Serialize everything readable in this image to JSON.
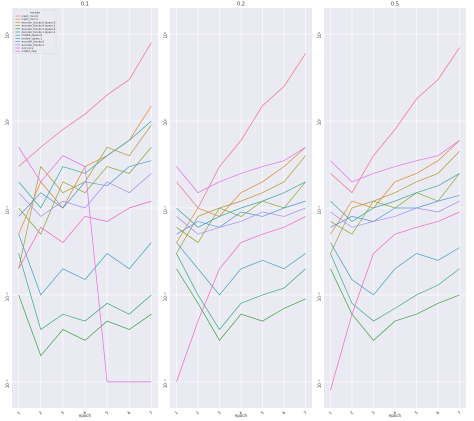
{
  "chart_data": [
    {
      "type": "line",
      "title": "0.1",
      "xlabel": "epoch",
      "log_y": true,
      "grid": true,
      "legend": "upper left",
      "legend_title": "module",
      "x": [
        1,
        2,
        3,
        4,
        5,
        6,
        7
      ],
      "xlim": [
        0.7,
        7.3
      ],
      "xticks": [
        1,
        2,
        3,
        4,
        5,
        6,
        7
      ],
      "ylim": [
        0.0005,
        20
      ],
      "yticks": [
        {
          "value": 0.001,
          "label": "10⁻³"
        },
        {
          "value": 0.01,
          "label": "10⁻²"
        },
        {
          "value": 0.1,
          "label": "10⁻¹"
        },
        {
          "value": 1,
          "label": "10⁰"
        },
        {
          "value": 10,
          "label": "10¹"
        }
      ],
      "series": [
        {
          "name": "input_conv.0",
          "color": "#f77189",
          "values": [
            0.3,
            0.5,
            0.8,
            1.2,
            2,
            3,
            8
          ]
        },
        {
          "name": "input_conv.1",
          "color": "#e18a31",
          "values": [
            0.05,
            0.2,
            0.1,
            0.3,
            0.4,
            0.6,
            1.5
          ]
        },
        {
          "name": "decoder_blocks.0.layers.0",
          "color": "#b59a32",
          "values": [
            0.02,
            0.3,
            0.15,
            0.2,
            0.5,
            0.4,
            0.9
          ]
        },
        {
          "name": "decoder_blocks.0.layers.1",
          "color": "#8ea832",
          "values": [
            0.1,
            0.05,
            0.2,
            0.15,
            0.3,
            0.25,
            0.5
          ]
        },
        {
          "name": "decoder_blocks.1.layers.0",
          "color": "#3ba342",
          "values": [
            0.01,
            0.002,
            0.004,
            0.003,
            0.005,
            0.004,
            0.006
          ]
        },
        {
          "name": "decoder_blocks.1.layers.1",
          "color": "#36ab87",
          "values": [
            0.03,
            0.004,
            0.006,
            0.005,
            0.008,
            0.006,
            0.01
          ]
        },
        {
          "name": "middle_layers.0",
          "color": "#38a9a5",
          "values": [
            0.2,
            0.1,
            0.3,
            0.25,
            0.4,
            0.6,
            1
          ]
        },
        {
          "name": "middle_layers.1",
          "color": "#3ba3c2",
          "values": [
            0.05,
            0.01,
            0.02,
            0.015,
            0.03,
            0.02,
            0.04
          ]
        },
        {
          "name": "encoder_blocks.0",
          "color": "#4b9ae8",
          "values": [
            0.08,
            0.15,
            0.1,
            0.2,
            0.18,
            0.3,
            0.35
          ]
        },
        {
          "name": "encoder_blocks.1",
          "color": "#a48cf4",
          "values": [
            0.15,
            0.08,
            0.12,
            0.1,
            0.2,
            0.15,
            0.25
          ]
        },
        {
          "name": "out_conv",
          "color": "#e46ee9",
          "values": [
            0.5,
            0.2,
            0.4,
            0.3,
            0.001,
            0.001,
            0.001
          ]
        },
        {
          "name": "output_skip",
          "color": "#f565c3",
          "values": [
            0.02,
            0.06,
            0.04,
            0.08,
            0.07,
            0.1,
            0.12
          ]
        }
      ]
    },
    {
      "type": "line",
      "title": "0.2",
      "xlabel": "epoch",
      "log_y": true,
      "grid": true,
      "x": [
        1,
        2,
        3,
        4,
        5,
        6,
        7
      ],
      "xlim": [
        0.7,
        7.3
      ],
      "xticks": [
        1,
        2,
        3,
        4,
        5,
        6,
        7
      ],
      "ylim": [
        0.0005,
        20
      ],
      "yticks": [
        {
          "value": 0.001,
          "label": "10⁻³"
        },
        {
          "value": 0.01,
          "label": "10⁻²"
        },
        {
          "value": 0.1,
          "label": "10⁻¹"
        },
        {
          "value": 1,
          "label": "10⁰"
        },
        {
          "value": 10,
          "label": "10¹"
        }
      ],
      "series": [
        {
          "color": "#f77189",
          "values": [
            0.2,
            0.1,
            0.3,
            0.6,
            1.5,
            2.5,
            6
          ]
        },
        {
          "color": "#e18a31",
          "values": [
            0.04,
            0.1,
            0.08,
            0.15,
            0.2,
            0.3,
            0.5
          ]
        },
        {
          "color": "#b59a32",
          "values": [
            0.03,
            0.08,
            0.1,
            0.12,
            0.15,
            0.2,
            0.4
          ]
        },
        {
          "color": "#8ea832",
          "values": [
            0.06,
            0.04,
            0.1,
            0.08,
            0.12,
            0.1,
            0.2
          ]
        },
        {
          "color": "#3ba342",
          "values": [
            0.02,
            0.008,
            0.003,
            0.006,
            0.005,
            0.007,
            0.009
          ]
        },
        {
          "color": "#36ab87",
          "values": [
            0.03,
            0.01,
            0.004,
            0.008,
            0.01,
            0.012,
            0.02
          ]
        },
        {
          "color": "#38a9a5",
          "values": [
            0.1,
            0.06,
            0.08,
            0.1,
            0.12,
            0.15,
            0.2
          ]
        },
        {
          "color": "#3ba3c2",
          "values": [
            0.04,
            0.02,
            0.01,
            0.02,
            0.025,
            0.02,
            0.03
          ]
        },
        {
          "color": "#4b9ae8",
          "values": [
            0.05,
            0.07,
            0.06,
            0.09,
            0.08,
            0.1,
            0.12
          ]
        },
        {
          "color": "#a48cf4",
          "values": [
            0.08,
            0.05,
            0.06,
            0.07,
            0.09,
            0.08,
            0.1
          ]
        },
        {
          "color": "#e46ee9",
          "values": [
            0.3,
            0.15,
            0.2,
            0.25,
            0.3,
            0.35,
            0.5
          ]
        },
        {
          "color": "#f565c3",
          "values": [
            0.001,
            0.005,
            0.02,
            0.04,
            0.05,
            0.06,
            0.08
          ]
        }
      ]
    },
    {
      "type": "line",
      "title": "0.5",
      "xlabel": "epoch",
      "log_y": true,
      "grid": true,
      "x": [
        1,
        2,
        3,
        4,
        5,
        6,
        7
      ],
      "xlim": [
        0.7,
        7.3
      ],
      "xticks": [
        1,
        2,
        3,
        4,
        5,
        6,
        7
      ],
      "ylim": [
        0.0005,
        20
      ],
      "yticks": [
        {
          "value": 0.001,
          "label": "10⁻³"
        },
        {
          "value": 0.01,
          "label": "10⁻²"
        },
        {
          "value": 0.1,
          "label": "10⁻¹"
        },
        {
          "value": 1,
          "label": "10⁰"
        },
        {
          "value": 10,
          "label": "10¹"
        }
      ],
      "series": [
        {
          "color": "#f77189",
          "values": [
            0.25,
            0.15,
            0.4,
            0.8,
            1.8,
            3,
            7
          ]
        },
        {
          "color": "#e18a31",
          "values": [
            0.05,
            0.12,
            0.1,
            0.2,
            0.25,
            0.35,
            0.6
          ]
        },
        {
          "color": "#b59a32",
          "values": [
            0.03,
            0.1,
            0.12,
            0.15,
            0.2,
            0.25,
            0.45
          ]
        },
        {
          "color": "#8ea832",
          "values": [
            0.07,
            0.05,
            0.12,
            0.1,
            0.15,
            0.12,
            0.25
          ]
        },
        {
          "color": "#3ba342",
          "values": [
            0.02,
            0.006,
            0.003,
            0.005,
            0.006,
            0.008,
            0.01
          ]
        },
        {
          "color": "#36ab87",
          "values": [
            0.03,
            0.008,
            0.005,
            0.007,
            0.01,
            0.013,
            0.02
          ]
        },
        {
          "color": "#38a9a5",
          "values": [
            0.12,
            0.07,
            0.1,
            0.12,
            0.15,
            0.18,
            0.25
          ]
        },
        {
          "color": "#3ba3c2",
          "values": [
            0.04,
            0.015,
            0.01,
            0.02,
            0.03,
            0.025,
            0.035
          ]
        },
        {
          "color": "#4b9ae8",
          "values": [
            0.06,
            0.08,
            0.07,
            0.1,
            0.1,
            0.12,
            0.14
          ]
        },
        {
          "color": "#a48cf4",
          "values": [
            0.09,
            0.06,
            0.07,
            0.08,
            0.1,
            0.09,
            0.12
          ]
        },
        {
          "color": "#e46ee9",
          "values": [
            0.35,
            0.2,
            0.25,
            0.3,
            0.35,
            0.4,
            0.6
          ]
        },
        {
          "color": "#f565c3",
          "values": [
            0.0008,
            0.006,
            0.03,
            0.05,
            0.06,
            0.07,
            0.09
          ]
        }
      ]
    }
  ]
}
